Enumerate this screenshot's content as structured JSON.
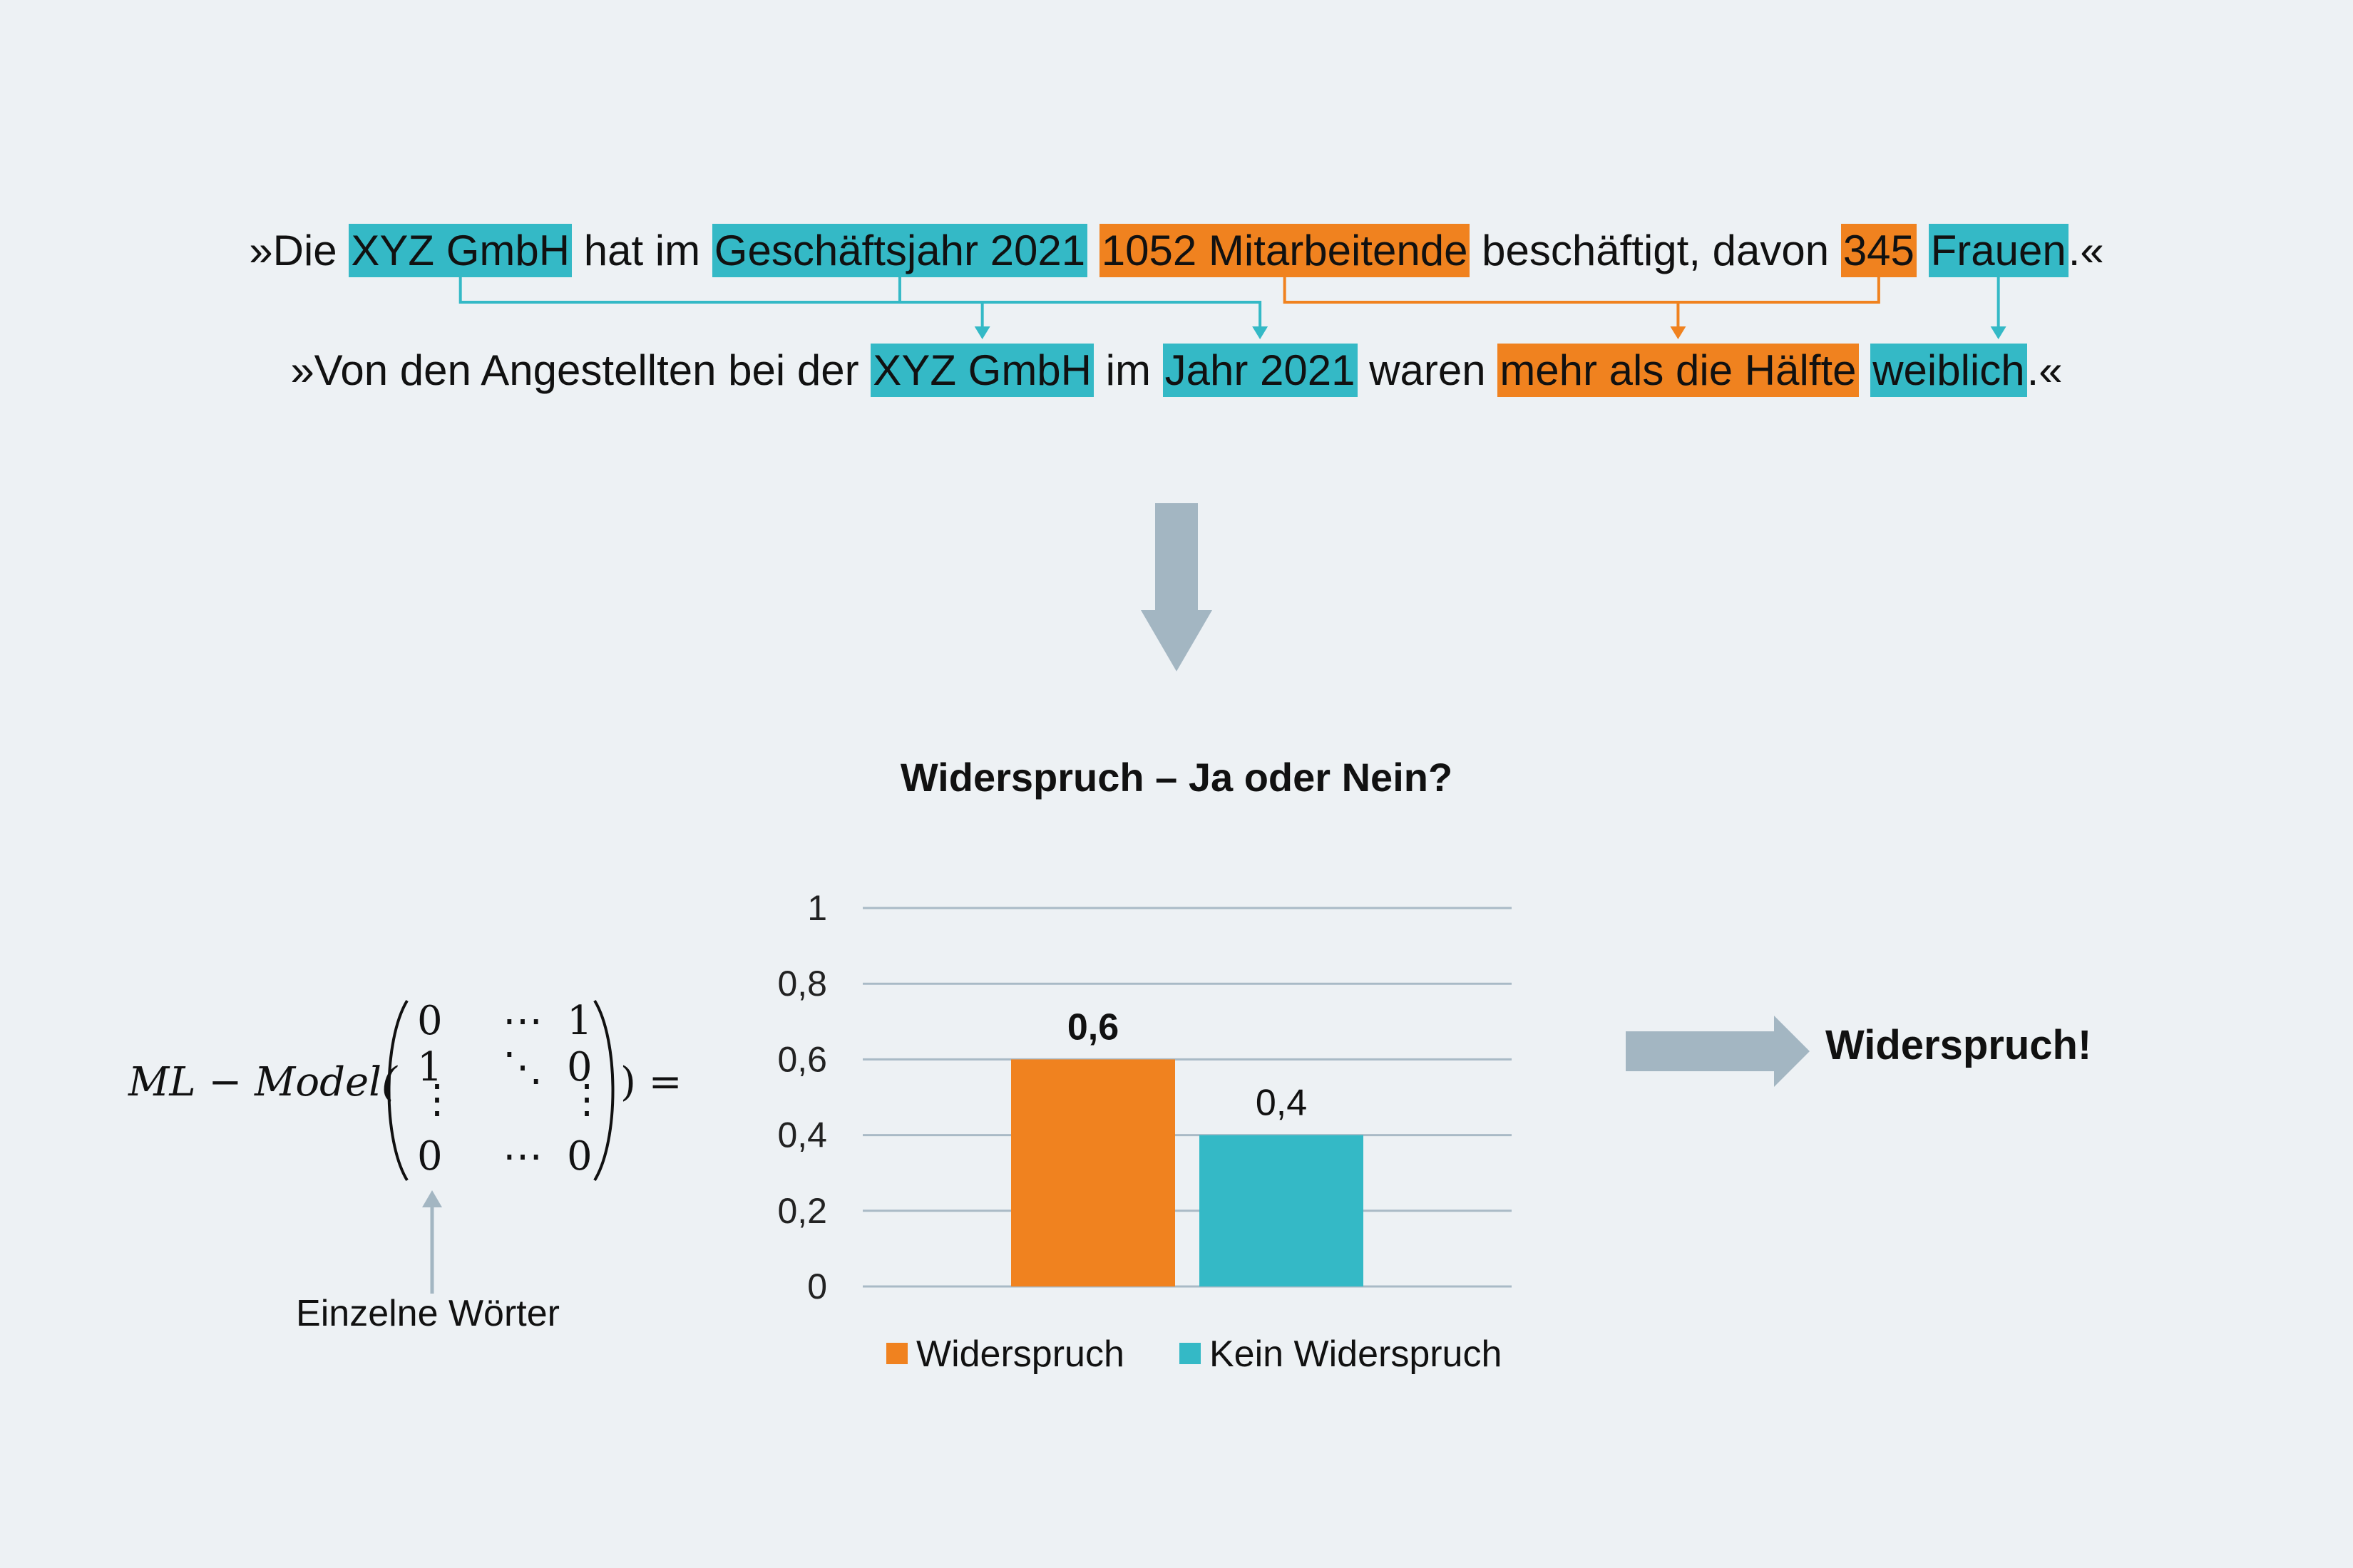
{
  "sentence1": {
    "open": "»Die ",
    "e1": "XYZ GmbH",
    "t1": " hat im ",
    "e2": "Geschäftsjahr 2021",
    "t2": " ",
    "e3": "1052 Mitarbeitende",
    "t3": " beschäftigt, davon ",
    "e4": "345",
    "t4": " ",
    "e5": "Frauen",
    "close": ".«"
  },
  "sentence2": {
    "open": "»Von den Angestellten bei der ",
    "e1": "XYZ GmbH",
    "t1": " im ",
    "e2": "Jahr 2021",
    "t2": " waren ",
    "e3": "mehr als die Hälfte",
    "t3": " ",
    "e4": "weiblich",
    "close": ".«"
  },
  "formula": {
    "prefix": "ML − Model(",
    "matrix": [
      [
        "0",
        "⋯",
        "1"
      ],
      [
        "1",
        "⋱",
        "0"
      ],
      [
        "⋮",
        "",
        "⋮"
      ],
      [
        "0",
        "⋯",
        "0"
      ]
    ],
    "suffix": ") ="
  },
  "caption": "Einzelne Wörter",
  "result": "Widerspruch!",
  "colors": {
    "teal": "#34b9c6",
    "orange": "#f0821f",
    "arrow": "#a3b6c2",
    "grid": "#a9bac6"
  },
  "chart_data": {
    "type": "bar",
    "title": "Widerspruch – Ja oder Nein?",
    "categories": [
      "Widerspruch",
      "Kein Widerspruch"
    ],
    "values": [
      0.6,
      0.4
    ],
    "data_labels": [
      "0,6",
      "0,4"
    ],
    "ylim": [
      0,
      1
    ],
    "yticks": [
      "0",
      "0,2",
      "0,4",
      "0,6",
      "0,8",
      "1"
    ],
    "grid": true,
    "legend": "bottom",
    "series_colors": [
      "#f0821f",
      "#34b9c6"
    ]
  }
}
